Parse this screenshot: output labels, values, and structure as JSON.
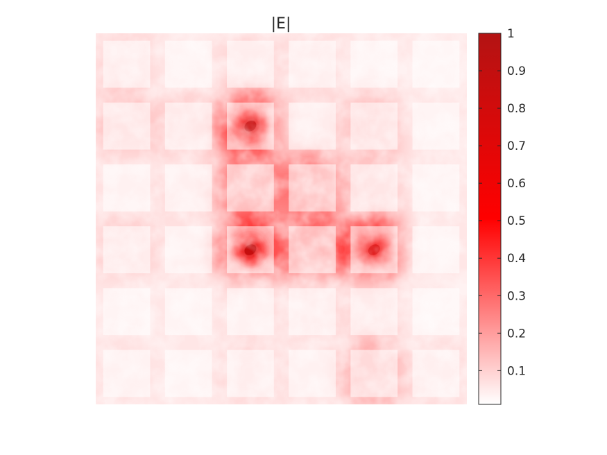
{
  "chart_data": {
    "type": "heatmap",
    "title": "|E|",
    "xlabel": "",
    "ylabel": "",
    "grid": false,
    "axes_visible": false,
    "colormap": {
      "name": "white-to-red",
      "stops": [
        {
          "value": 0.0,
          "color": "#ffffff"
        },
        {
          "value": 0.5,
          "color": "#ff0000"
        },
        {
          "value": 1.0,
          "color": "#b31313"
        }
      ]
    },
    "colorbar": {
      "position": "right",
      "range": [
        0.01,
        1
      ],
      "ticks": [
        {
          "value": 0.1,
          "label": "0.1"
        },
        {
          "value": 0.2,
          "label": "0.2"
        },
        {
          "value": 0.3,
          "label": "0.3"
        },
        {
          "value": 0.4,
          "label": "0.4"
        },
        {
          "value": 0.5,
          "label": "0.5"
        },
        {
          "value": 0.6,
          "label": "0.6"
        },
        {
          "value": 0.7,
          "label": "0.7"
        },
        {
          "value": 0.8,
          "label": "0.8"
        },
        {
          "value": 0.9,
          "label": "0.9"
        },
        {
          "value": 1.0,
          "label": "1"
        }
      ]
    },
    "grid_size": [
      6,
      6
    ],
    "rows": [
      [
        0.09,
        0.05,
        0.08,
        0.07,
        0.05,
        0.04
      ],
      [
        0.12,
        0.1,
        0.72,
        0.08,
        0.14,
        0.05
      ],
      [
        0.06,
        0.07,
        0.28,
        0.3,
        0.12,
        0.05
      ],
      [
        0.1,
        0.06,
        0.75,
        0.32,
        0.6,
        0.05
      ],
      [
        0.05,
        0.05,
        0.06,
        0.07,
        0.09,
        0.04
      ],
      [
        0.06,
        0.05,
        0.08,
        0.06,
        0.18,
        0.07
      ]
    ],
    "hotspots": [
      {
        "row": 1,
        "col": 2,
        "value": 0.75
      },
      {
        "row": 3,
        "col": 2,
        "value": 0.78
      },
      {
        "row": 3,
        "col": 4,
        "value": 0.62
      }
    ]
  }
}
